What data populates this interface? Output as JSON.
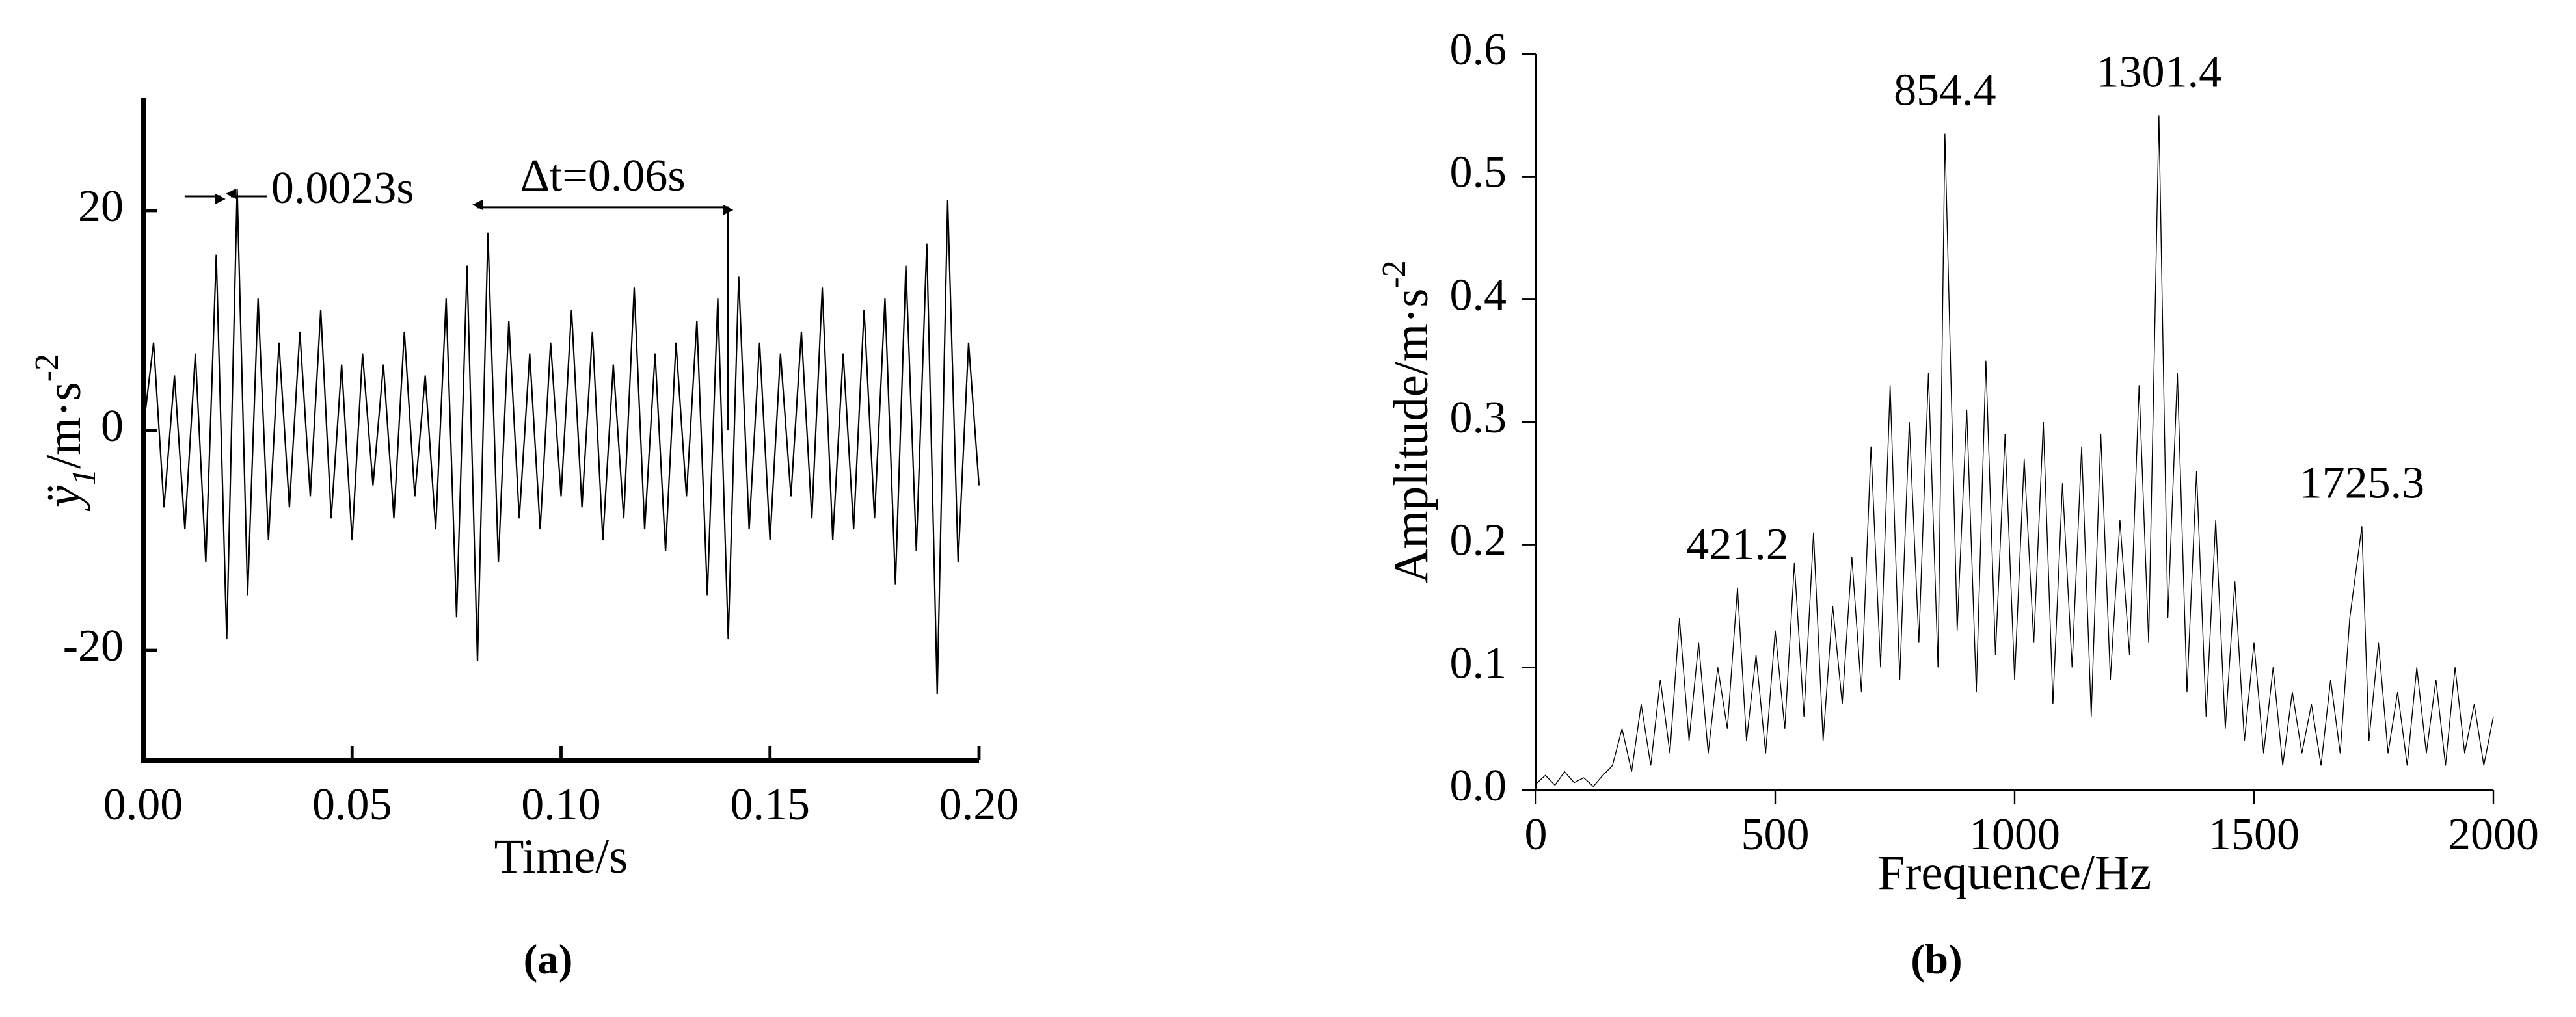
{
  "chart_data": [
    {
      "type": "line",
      "caption": "(a)",
      "xlabel": "Time/s",
      "ylabel": {
        "base": "ÿ",
        "sub": "1",
        "unit": "/m·s",
        "sup": "-2"
      },
      "xlim": [
        0,
        0.2
      ],
      "ylim": [
        -30,
        30
      ],
      "xticks": [
        {
          "value": 0,
          "label": "0.00"
        },
        {
          "value": 0.05,
          "label": "0.05"
        },
        {
          "value": 0.1,
          "label": "0.10"
        },
        {
          "value": 0.15,
          "label": "0.15"
        },
        {
          "value": 0.2,
          "label": "0.20"
        }
      ],
      "yticks": [
        -20,
        0,
        20
      ],
      "annotations": [
        {
          "label": "0.0023s",
          "x0": 0.0185,
          "x1": 0.021,
          "y": 21.3
        },
        {
          "label": "Δt=0.06s",
          "x0": 0.08,
          "x1": 0.14,
          "y": 20.3
        }
      ],
      "series": [
        {
          "color": "#000000",
          "x": [
            0,
            0.0025,
            0.005,
            0.0075,
            0.01,
            0.0125,
            0.015,
            0.0175,
            0.02,
            0.0225,
            0.025,
            0.0275,
            0.03,
            0.0325,
            0.035,
            0.0375,
            0.04,
            0.0425,
            0.045,
            0.0475,
            0.05,
            0.0525,
            0.055,
            0.0575,
            0.06,
            0.0625,
            0.065,
            0.0675,
            0.07,
            0.0725,
            0.075,
            0.0775,
            0.08,
            0.0825,
            0.085,
            0.0875,
            0.09,
            0.0925,
            0.095,
            0.0975,
            0.1,
            0.1025,
            0.105,
            0.1075,
            0.11,
            0.1125,
            0.115,
            0.1175,
            0.12,
            0.1225,
            0.125,
            0.1275,
            0.13,
            0.1325,
            0.135,
            0.1375,
            0.14,
            0.1425,
            0.145,
            0.1475,
            0.15,
            0.1525,
            0.155,
            0.1575,
            0.16,
            0.1625,
            0.165,
            0.1675,
            0.17,
            0.1725,
            0.175,
            0.1775,
            0.18,
            0.1825,
            0.185,
            0.1875,
            0.19,
            0.1925,
            0.195,
            0.1975,
            0.2
          ],
          "values": [
            0,
            8,
            -7,
            5,
            -9,
            7,
            -12,
            16,
            -19,
            22,
            -15,
            12,
            -10,
            8,
            -7,
            9,
            -6,
            11,
            -8,
            6,
            -10,
            7,
            -5,
            6,
            -8,
            9,
            -6,
            5,
            -9,
            12,
            -17,
            15,
            -21,
            18,
            -12,
            10,
            -8,
            7,
            -9,
            8,
            -6,
            11,
            -7,
            9,
            -10,
            6,
            -8,
            13,
            -9,
            7,
            -11,
            8,
            -6,
            10,
            -15,
            12,
            -19,
            14,
            -9,
            8,
            -10,
            7,
            -6,
            9,
            -8,
            13,
            -10,
            7,
            -9,
            11,
            -8,
            12,
            -14,
            15,
            -11,
            17,
            -24,
            21,
            -12,
            8,
            -5
          ]
        }
      ]
    },
    {
      "type": "line",
      "caption": "(b)",
      "xlabel": "Frequence/Hz",
      "ylabel": {
        "unit": "Amplitude/m·s",
        "sup": "-2"
      },
      "xlim": [
        0,
        2000
      ],
      "ylim": [
        0,
        0.6
      ],
      "xticks": [
        0,
        500,
        1000,
        1500,
        2000
      ],
      "yticks": [
        {
          "value": 0,
          "label": "0.0"
        },
        {
          "value": 0.1,
          "label": "0.1"
        },
        {
          "value": 0.2,
          "label": "0.2"
        },
        {
          "value": 0.3,
          "label": "0.3"
        },
        {
          "value": 0.4,
          "label": "0.4"
        },
        {
          "value": 0.5,
          "label": "0.5"
        },
        {
          "value": 0.6,
          "label": "0.6"
        }
      ],
      "annotations": [
        {
          "label": "421.2",
          "x": 421.2,
          "y": 0.165
        },
        {
          "label": "854.4",
          "x": 854.4,
          "y": 0.535
        },
        {
          "label": "1301.4",
          "x": 1301.4,
          "y": 0.55
        },
        {
          "label": "1725.3",
          "x": 1725.3,
          "y": 0.215
        }
      ],
      "series": [
        {
          "color": "#000000",
          "x": [
            0,
            20,
            40,
            60,
            80,
            100,
            120,
            140,
            160,
            180,
            200,
            220,
            240,
            260,
            280,
            300,
            320,
            340,
            360,
            380,
            400,
            421.2,
            440,
            460,
            480,
            500,
            520,
            540,
            560,
            580,
            600,
            620,
            640,
            660,
            680,
            700,
            720,
            740,
            760,
            780,
            800,
            820,
            840,
            854.4,
            880,
            900,
            920,
            940,
            960,
            980,
            1000,
            1020,
            1040,
            1060,
            1080,
            1100,
            1120,
            1140,
            1160,
            1180,
            1200,
            1220,
            1240,
            1260,
            1280,
            1301.4,
            1320,
            1340,
            1360,
            1380,
            1400,
            1420,
            1440,
            1460,
            1480,
            1500,
            1520,
            1540,
            1560,
            1580,
            1600,
            1620,
            1640,
            1660,
            1680,
            1700,
            1725.3,
            1740,
            1760,
            1780,
            1800,
            1820,
            1840,
            1860,
            1880,
            1900,
            1920,
            1940,
            1960,
            1980,
            2000
          ],
          "values": [
            0.005,
            0.012,
            0.004,
            0.015,
            0.006,
            0.01,
            0.003,
            0.012,
            0.02,
            0.05,
            0.015,
            0.07,
            0.02,
            0.09,
            0.03,
            0.14,
            0.04,
            0.12,
            0.03,
            0.1,
            0.05,
            0.165,
            0.04,
            0.11,
            0.03,
            0.13,
            0.05,
            0.185,
            0.06,
            0.21,
            0.04,
            0.15,
            0.07,
            0.19,
            0.08,
            0.28,
            0.1,
            0.33,
            0.09,
            0.3,
            0.12,
            0.34,
            0.1,
            0.535,
            0.13,
            0.31,
            0.08,
            0.35,
            0.11,
            0.29,
            0.09,
            0.27,
            0.12,
            0.3,
            0.07,
            0.25,
            0.1,
            0.28,
            0.06,
            0.29,
            0.09,
            0.22,
            0.11,
            0.33,
            0.12,
            0.55,
            0.14,
            0.34,
            0.08,
            0.26,
            0.06,
            0.22,
            0.05,
            0.17,
            0.04,
            0.12,
            0.03,
            0.1,
            0.02,
            0.08,
            0.03,
            0.07,
            0.02,
            0.09,
            0.03,
            0.14,
            0.215,
            0.04,
            0.12,
            0.03,
            0.08,
            0.02,
            0.1,
            0.03,
            0.09,
            0.02,
            0.1,
            0.03,
            0.07,
            0.02,
            0.06
          ]
        }
      ]
    }
  ]
}
